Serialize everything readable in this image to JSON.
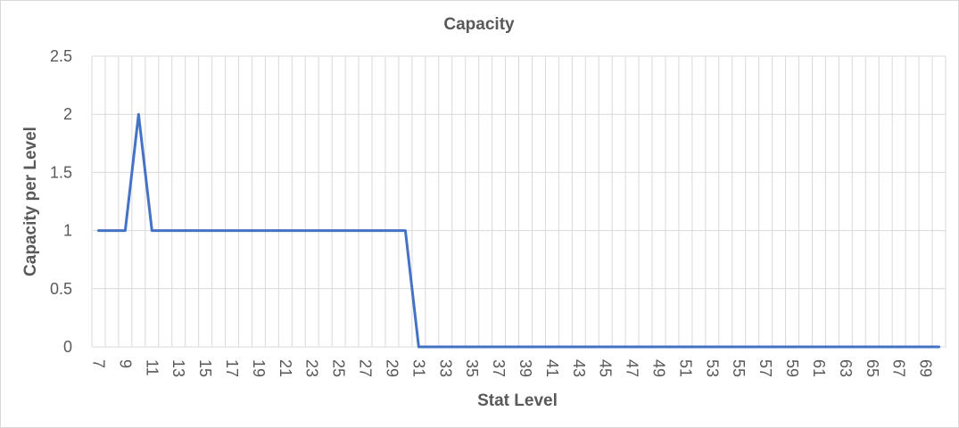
{
  "chart_data": {
    "type": "line",
    "title": "Capacity",
    "xlabel": "Stat Level",
    "ylabel": "Capacity per Level",
    "x": [
      7,
      8,
      9,
      10,
      11,
      12,
      13,
      14,
      15,
      16,
      17,
      18,
      19,
      20,
      21,
      22,
      23,
      24,
      25,
      26,
      27,
      28,
      29,
      30,
      31,
      32,
      33,
      34,
      35,
      36,
      37,
      38,
      39,
      40,
      41,
      42,
      43,
      44,
      45,
      46,
      47,
      48,
      49,
      50,
      51,
      52,
      53,
      54,
      55,
      56,
      57,
      58,
      59,
      60,
      61,
      62,
      63,
      64,
      65,
      66,
      67,
      68,
      69,
      70
    ],
    "x_tick_labels": [
      "7",
      "9",
      "11",
      "13",
      "15",
      "17",
      "19",
      "21",
      "23",
      "25",
      "27",
      "29",
      "31",
      "33",
      "35",
      "37",
      "39",
      "41",
      "43",
      "45",
      "47",
      "49",
      "51",
      "53",
      "55",
      "57",
      "59",
      "61",
      "63",
      "65",
      "67",
      "69"
    ],
    "ylim": [
      0,
      2.5
    ],
    "y_ticks": [
      "0",
      "0.5",
      "1",
      "1.5",
      "2",
      "2.5"
    ],
    "grid": true,
    "series": [
      {
        "color": "#4472c4",
        "values": [
          1,
          1,
          1,
          2,
          1,
          1,
          1,
          1,
          1,
          1,
          1,
          1,
          1,
          1,
          1,
          1,
          1,
          1,
          1,
          1,
          1,
          1,
          1,
          1,
          0,
          0,
          0,
          0,
          0,
          0,
          0,
          0,
          0,
          0,
          0,
          0,
          0,
          0,
          0,
          0,
          0,
          0,
          0,
          0,
          0,
          0,
          0,
          0,
          0,
          0,
          0,
          0,
          0,
          0,
          0,
          0,
          0,
          0,
          0,
          0,
          0,
          0,
          0,
          0
        ]
      }
    ],
    "gridline_color": "#d9d9d9"
  }
}
